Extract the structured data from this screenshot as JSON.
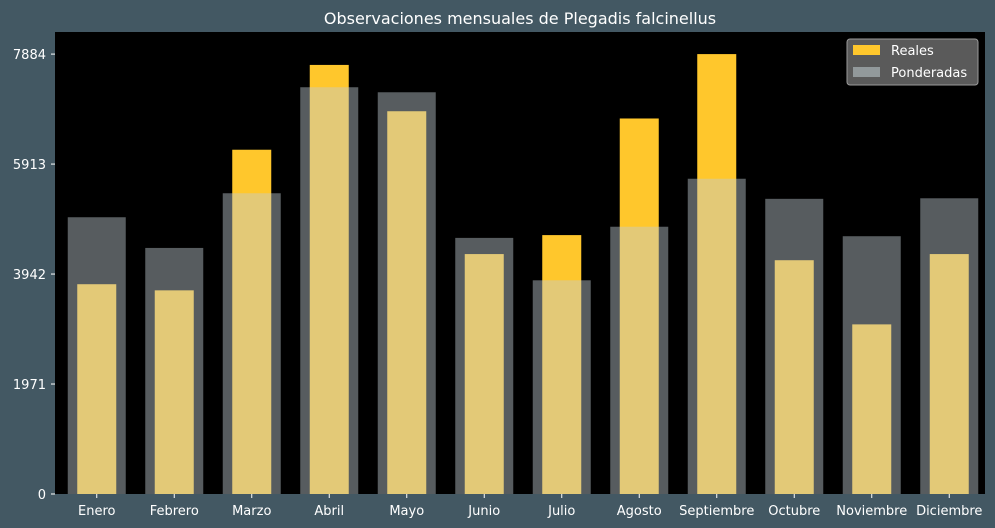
{
  "chart_data": {
    "type": "bar",
    "title": "Observaciones mensuales de Plegadis falcinellus",
    "xlabel": "",
    "ylabel": "",
    "categories": [
      "Enero",
      "Febrero",
      "Marzo",
      "Abril",
      "Mayo",
      "Junio",
      "Julio",
      "Agosto",
      "Septiembre",
      "Octubre",
      "Noviembre",
      "Diciembre"
    ],
    "series": [
      {
        "name": "Reales",
        "color": "#ffc72c",
        "values": [
          3760,
          3650,
          6170,
          7690,
          6860,
          4300,
          4640,
          6730,
          7884,
          4190,
          3040,
          4300
        ]
      },
      {
        "name": "Ponderadas",
        "color": "#c1cdd2",
        "values": [
          4960,
          4410,
          5390,
          7290,
          7200,
          4590,
          3830,
          4790,
          5650,
          5290,
          4620,
          5300
        ]
      }
    ],
    "yticks": [
      "0",
      "1971",
      "3942",
      "5913",
      "7884"
    ],
    "ylim": [
      0,
      8280
    ],
    "grid": false,
    "legend": "top-right",
    "overlap_color": "#d6cf8a",
    "plot_background": "#000000"
  }
}
